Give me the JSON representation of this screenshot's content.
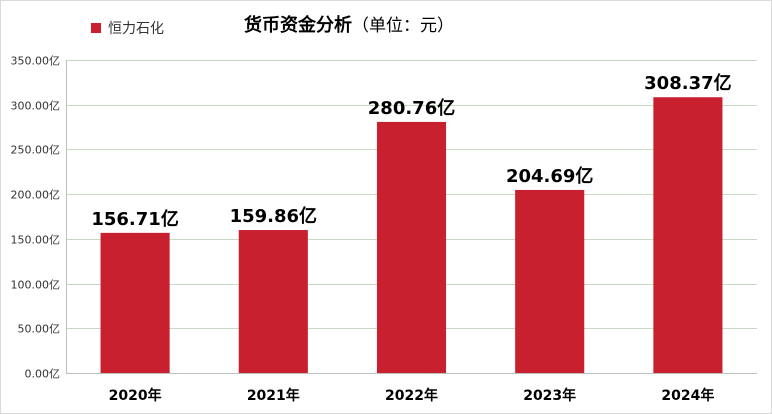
{
  "chart_data": {
    "type": "bar",
    "title": "货币资金分析",
    "title_unit": "（单位：元）",
    "categories": [
      "2020年",
      "2021年",
      "2022年",
      "2023年",
      "2024年"
    ],
    "series": [
      {
        "name": "恒力石化",
        "values": [
          156.71,
          159.86,
          280.76,
          204.69,
          308.37
        ],
        "data_labels": [
          "156.71亿",
          "159.86亿",
          "280.76亿",
          "204.69亿",
          "308.37亿"
        ],
        "color": "#c8202f"
      }
    ],
    "y_ticks": [
      0,
      50,
      100,
      150,
      200,
      250,
      300,
      350
    ],
    "y_tick_labels": [
      "0.00亿",
      "50.00亿",
      "100.00亿",
      "150.00亿",
      "200.00亿",
      "250.00亿",
      "300.00亿",
      "350.00亿"
    ],
    "ylim": [
      0,
      350
    ],
    "grid": true,
    "gridline_color": "#c6dcc2",
    "legend_position": "top-left"
  }
}
